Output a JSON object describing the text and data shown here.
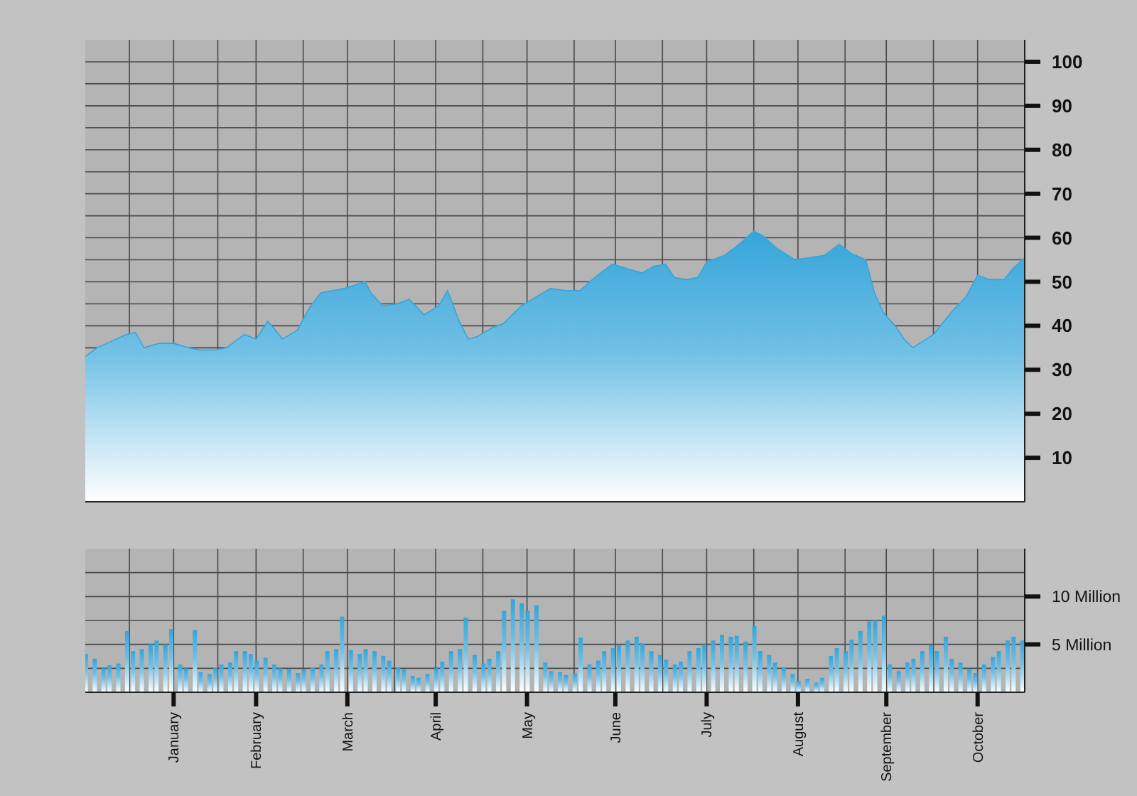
{
  "chart_data": [
    {
      "type": "area",
      "x": [
        "--01-01",
        "--01-05",
        "--01-15",
        "--01-18",
        "--01-21",
        "--01-26",
        "--01-31",
        "--02-05",
        "--02-09",
        "--02-14",
        "--02-18",
        "--02-24",
        "--02-28",
        "--03-04",
        "--03-09",
        "--03-14",
        "--03-18",
        "--03-22",
        "--03-30",
        "--04-06",
        "--04-08",
        "--04-12",
        "--04-17",
        "--04-21",
        "--04-26",
        "--05-01",
        "--05-04",
        "--05-08",
        "--05-11",
        "--05-14",
        "--05-19",
        "--05-23",
        "--05-29",
        "--06-03",
        "--06-08",
        "--06-13",
        "--06-18",
        "--06-23",
        "--06-29",
        "--07-04",
        "--07-09",
        "--07-13",
        "--07-17",
        "--07-20",
        "--07-24",
        "--07-28",
        "--07-31",
        "--08-06",
        "--08-11",
        "--08-16",
        "--08-19",
        "--08-24",
        "--08-30",
        "--09-04",
        "--09-09",
        "--09-14",
        "--09-18",
        "--09-23",
        "--09-26",
        "--09-29",
        "--10-03",
        "--10-06",
        "--10-09",
        "--10-16",
        "--10-22",
        "--10-27",
        "--10-31",
        "--11-04",
        "--11-09",
        "--11-12",
        "--11-16"
      ],
      "values": [
        33,
        35,
        38,
        38.5,
        35,
        36,
        36,
        35,
        34.5,
        34.5,
        35,
        38,
        37,
        41,
        37,
        39,
        44,
        47.5,
        48.5,
        50,
        47.5,
        44.5,
        45,
        46,
        42.5,
        44.5,
        48,
        41,
        37,
        37.5,
        39.5,
        40.5,
        44.5,
        46.5,
        48.5,
        48,
        48,
        51,
        54,
        53,
        52,
        53.5,
        54,
        51,
        50.5,
        51,
        54.5,
        56,
        58.5,
        61.5,
        60.5,
        57.5,
        55,
        55.5,
        56,
        58.5,
        56.5,
        55,
        47.5,
        43,
        40,
        37,
        35,
        38,
        43,
        46.5,
        51.5,
        50.5,
        50.5,
        53,
        55.5
      ],
      "color": "#35a5da",
      "xlim": [
        "--01-01",
        "--11-16"
      ],
      "xticks": [
        {
          "value": "--01-16",
          "label": null
        },
        {
          "value": "--01-31",
          "label": null
        },
        {
          "value": "--02-15",
          "label": null
        },
        {
          "value": "--02-28",
          "label": null
        },
        {
          "value": "--03-16",
          "label": null
        },
        {
          "value": "--03-31",
          "label": null
        },
        {
          "value": "--04-16",
          "label": null
        },
        {
          "value": "--04-30",
          "label": null
        },
        {
          "value": "--05-16",
          "label": null
        },
        {
          "value": "--05-31",
          "label": null
        },
        {
          "value": "--06-16",
          "label": null
        },
        {
          "value": "--06-30",
          "label": null
        },
        {
          "value": "--07-16",
          "label": null
        },
        {
          "value": "--07-31",
          "label": null
        },
        {
          "value": "--08-16",
          "label": null
        },
        {
          "value": "--08-31",
          "label": null
        },
        {
          "value": "--09-16",
          "label": null
        },
        {
          "value": "--09-30",
          "label": null
        },
        {
          "value": "--10-16",
          "label": null
        },
        {
          "value": "--10-31",
          "label": null
        }
      ],
      "ylim": [
        0,
        105
      ],
      "yticks": [
        10,
        20,
        30,
        {
          "value": 35,
          "label": null
        },
        40,
        {
          "value": 45,
          "label": null
        },
        50,
        {
          "value": 55,
          "label": null
        },
        60,
        {
          "value": 65,
          "label": null
        },
        70,
        {
          "value": 75,
          "label": null
        },
        80,
        {
          "value": 85,
          "label": null
        },
        90,
        {
          "value": 95,
          "label": null
        },
        100
      ],
      "grid": true,
      "tick_labels": "y"
    },
    {
      "type": "bar",
      "x": [
        "--01-01",
        "--01-04",
        "--01-07",
        "--01-09",
        "--01-12",
        "--01-15",
        "--01-17",
        "--01-20",
        "--01-23",
        "--01-25",
        "--01-28",
        "--01-30",
        "--02-02",
        "--02-04",
        "--02-07",
        "--02-09",
        "--02-12",
        "--02-14",
        "--02-16",
        "--02-19",
        "--02-21",
        "--02-24",
        "--02-26",
        "--02-28",
        "--03-03",
        "--03-06",
        "--03-08",
        "--03-11",
        "--03-14",
        "--03-16",
        "--03-19",
        "--03-22",
        "--03-24",
        "--03-27",
        "--03-29",
        "--04-01",
        "--04-04",
        "--04-06",
        "--04-09",
        "--04-12",
        "--04-14",
        "--04-17",
        "--04-19",
        "--04-22",
        "--04-24",
        "--04-27",
        "--04-30",
        "--05-02",
        "--05-05",
        "--05-08",
        "--05-10",
        "--05-13",
        "--05-16",
        "--05-18",
        "--05-21",
        "--05-23",
        "--05-26",
        "--05-29",
        "--05-31",
        "--06-03",
        "--06-06",
        "--06-08",
        "--06-11",
        "--06-13",
        "--06-16",
        "--06-18",
        "--06-21",
        "--06-24",
        "--06-26",
        "--06-29",
        "--07-01",
        "--07-04",
        "--07-07",
        "--07-09",
        "--07-12",
        "--07-15",
        "--07-17",
        "--07-20",
        "--07-22",
        "--07-25",
        "--07-28",
        "--07-30",
        "--08-02",
        "--08-05",
        "--08-08",
        "--08-10",
        "--08-13",
        "--08-16",
        "--08-18",
        "--08-21",
        "--08-23",
        "--08-26",
        "--08-29",
        "--08-31",
        "--09-03",
        "--09-06",
        "--09-08",
        "--09-11",
        "--09-13",
        "--09-16",
        "--09-18",
        "--09-21",
        "--09-24",
        "--09-26",
        "--09-29",
        "--10-01",
        "--10-04",
        "--10-07",
        "--10-09",
        "--10-12",
        "--10-15",
        "--10-17",
        "--10-20",
        "--10-22",
        "--10-25",
        "--10-28",
        "--10-30",
        "--11-02",
        "--11-05",
        "--11-07",
        "--11-10",
        "--11-12",
        "--11-15"
      ],
      "values": [
        4.0,
        3.5,
        2.5,
        2.8,
        3.0,
        6.4,
        4.3,
        4.5,
        5.0,
        5.4,
        5.0,
        6.6,
        2.9,
        2.5,
        6.5,
        2.1,
        1.9,
        2.6,
        2.9,
        3.1,
        4.3,
        4.3,
        4.0,
        3.3,
        3.6,
        2.9,
        2.5,
        2.4,
        2.0,
        2.4,
        2.6,
        2.9,
        4.3,
        4.5,
        7.9,
        4.4,
        4.0,
        4.5,
        4.3,
        3.8,
        3.3,
        2.6,
        2.4,
        1.7,
        1.5,
        1.9,
        2.5,
        3.2,
        4.3,
        4.5,
        7.8,
        3.9,
        3.0,
        3.5,
        4.3,
        8.5,
        9.7,
        9.3,
        8.5,
        9.1,
        3.1,
        2.2,
        2.1,
        1.8,
        2.0,
        5.7,
        2.9,
        3.3,
        4.3,
        4.6,
        4.9,
        5.4,
        5.8,
        5.1,
        4.3,
        3.9,
        3.4,
        2.9,
        3.2,
        4.3,
        4.6,
        5.0,
        5.4,
        6.0,
        5.8,
        5.9,
        5.3,
        6.9,
        4.3,
        3.9,
        3.1,
        2.6,
        1.9,
        1.2,
        1.4,
        1.0,
        1.5,
        3.8,
        4.6,
        4.3,
        5.5,
        6.4,
        7.4,
        7.5,
        8.0,
        2.9,
        2.2,
        3.1,
        3.5,
        4.3,
        4.9,
        4.3,
        5.8,
        3.5,
        3.1,
        2.4,
        2.0,
        2.9,
        3.7,
        4.3,
        5.4,
        5.8,
        5.4
      ],
      "color": "#35a5da",
      "xlim": [
        "--01-01",
        "--11-16"
      ],
      "xticks": [
        {
          "value": "--01-16",
          "label": null
        },
        {
          "value": "--01-31",
          "label": "January"
        },
        {
          "value": "--02-15",
          "label": null
        },
        {
          "value": "--02-28",
          "label": "February"
        },
        {
          "value": "--03-16",
          "label": null
        },
        {
          "value": "--03-31",
          "label": "March"
        },
        {
          "value": "--04-16",
          "label": null
        },
        {
          "value": "--04-30",
          "label": "April"
        },
        {
          "value": "--05-16",
          "label": null
        },
        {
          "value": "--05-31",
          "label": "May"
        },
        {
          "value": "--06-16",
          "label": null
        },
        {
          "value": "--06-30",
          "label": "June"
        },
        {
          "value": "--07-16",
          "label": null
        },
        {
          "value": "--07-31",
          "label": "July"
        },
        {
          "value": "--08-16",
          "label": null
        },
        {
          "value": "--08-31",
          "label": "August"
        },
        {
          "value": "--09-16",
          "label": null
        },
        {
          "value": "--09-30",
          "label": "September"
        },
        {
          "value": "--10-16",
          "label": null
        },
        {
          "value": "--10-31",
          "label": "October"
        }
      ],
      "ylim": [
        0,
        15
      ],
      "yticks": [
        {
          "value": 2.5,
          "label": null
        },
        {
          "value": 5,
          "label": "5 Million"
        },
        {
          "value": 7.5,
          "label": null
        },
        {
          "value": 10,
          "label": "10 Million"
        },
        {
          "value": 12.5,
          "label": null
        }
      ],
      "grid": true
    }
  ]
}
